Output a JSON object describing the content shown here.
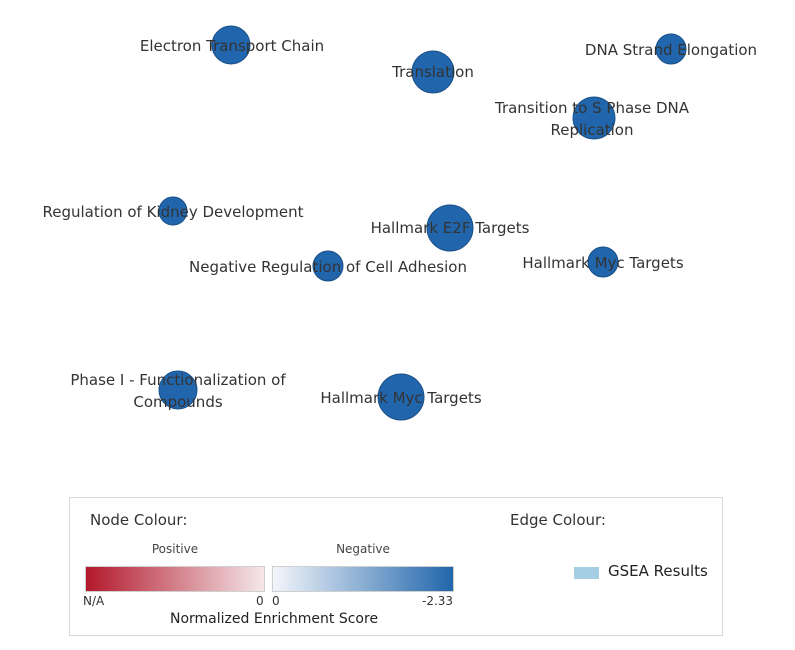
{
  "nodes": [
    {
      "label": "Electron Transport Chain",
      "lines": [
        "Electron Transport Chain"
      ],
      "color": "#2166ac"
    },
    {
      "label": "Translation",
      "lines": [
        "Translation"
      ],
      "color": "#2166ac"
    },
    {
      "label": "DNA Strand Elongation",
      "lines": [
        "DNA Strand Elongation"
      ],
      "color": "#2166ac"
    },
    {
      "label": "Transition to S Phase DNA Replication",
      "lines": [
        "Transition to S Phase DNA",
        "Replication"
      ],
      "color": "#2166ac"
    },
    {
      "label": "Regulation of Kidney Development",
      "lines": [
        "Regulation of Kidney Development"
      ],
      "color": "#2166ac"
    },
    {
      "label": "Hallmark E2F Targets",
      "lines": [
        "Hallmark E2F Targets"
      ],
      "color": "#2166ac"
    },
    {
      "label": "Negative Regulation of Cell Adhesion",
      "lines": [
        "Negative Regulation of Cell Adhesion"
      ],
      "color": "#2166ac"
    },
    {
      "label": "Hallmark Myc Targets",
      "lines": [
        "Hallmark Myc Targets"
      ],
      "color": "#2166ac"
    },
    {
      "label": "Phase I - Functionalization of Compounds",
      "lines": [
        "Phase I - Functionalization of",
        "Compounds"
      ],
      "color": "#2166ac"
    },
    {
      "label": "Hallmark Myc Targets",
      "lines": [
        "Hallmark Myc Targets"
      ],
      "color": "#2166ac"
    }
  ],
  "legend": {
    "node_colour_title": "Node Colour:",
    "edge_colour_title": "Edge Colour:",
    "positive_label": "Positive",
    "negative_label": "Negative",
    "positive_gradient": [
      "#b2182b",
      "#f4e7e9"
    ],
    "negative_gradient": [
      "#f3f6fa",
      "#2166ac"
    ],
    "tick_na": "N/A",
    "tick_pos_zero": "0",
    "tick_neg_zero": "0",
    "tick_neg_min": "-2.33",
    "axis_label": "Normalized Enrichment Score",
    "edge_label": "GSEA Results",
    "edge_color": "#a6cee3"
  }
}
